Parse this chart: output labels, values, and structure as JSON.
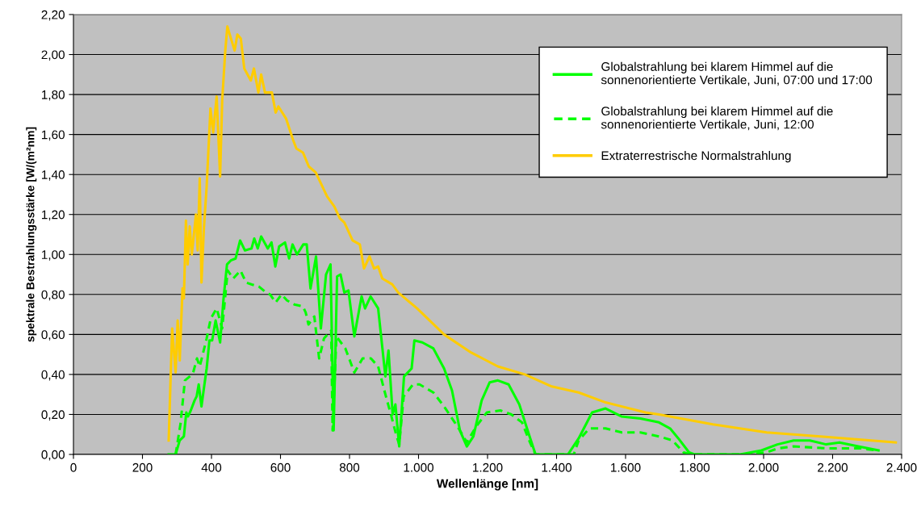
{
  "chart_data": {
    "type": "line",
    "xlabel": "Wellenlänge [nm]",
    "ylabel": "spektrale Bestrahlungsstärke [W/(m²nm]",
    "xlim": [
      0,
      2400
    ],
    "ylim": [
      0,
      2.2
    ],
    "xticks": [
      {
        "value": 0,
        "label": "0"
      },
      {
        "value": 200,
        "label": "200"
      },
      {
        "value": 400,
        "label": "400"
      },
      {
        "value": 600,
        "label": "600"
      },
      {
        "value": 800,
        "label": "800"
      },
      {
        "value": 1000,
        "label": "1.000"
      },
      {
        "value": 1200,
        "label": "1.200"
      },
      {
        "value": 1400,
        "label": "1.400"
      },
      {
        "value": 1600,
        "label": "1.600"
      },
      {
        "value": 1800,
        "label": "1.800"
      },
      {
        "value": 2000,
        "label": "2.000"
      },
      {
        "value": 2200,
        "label": "2.200"
      },
      {
        "value": 2400,
        "label": "2.400"
      }
    ],
    "yticks": [
      {
        "value": 0,
        "label": "0,00"
      },
      {
        "value": 0.2,
        "label": "0,20"
      },
      {
        "value": 0.4,
        "label": "0,40"
      },
      {
        "value": 0.6,
        "label": "0,60"
      },
      {
        "value": 0.8,
        "label": "0,80"
      },
      {
        "value": 1.0,
        "label": "1,00"
      },
      {
        "value": 1.2,
        "label": "1,20"
      },
      {
        "value": 1.4,
        "label": "1,40"
      },
      {
        "value": 1.6,
        "label": "1,60"
      },
      {
        "value": 1.8,
        "label": "1,80"
      },
      {
        "value": 2.0,
        "label": "2,00"
      },
      {
        "value": 2.2,
        "label": "2,20"
      }
    ],
    "grid": "y",
    "legend": "top right",
    "marker": "none",
    "series": [
      {
        "name": "Globalstrahlung bei klarem Himmel auf die sonnenorientierte Vertikale, Juni, 07:00 und 17:00",
        "color": "#00ff00",
        "line_style": "solid",
        "x": [
          276,
          296,
          308,
          320,
          327,
          332,
          340,
          351,
          357,
          363,
          371,
          378,
          386,
          394,
          402,
          412,
          425,
          435,
          445,
          456,
          470,
          483,
          497,
          516,
          524,
          534,
          544,
          563,
          574,
          585,
          596,
          613,
          625,
          635,
          648,
          666,
          676,
          687,
          703,
          717,
          732,
          745,
          754,
          764,
          774,
          785,
          797,
          814,
          835,
          845,
          861,
          883,
          904,
          913,
          925,
          933,
          944,
          958,
          980,
          988,
          1011,
          1043,
          1074,
          1097,
          1120,
          1140,
          1159,
          1183,
          1206,
          1230,
          1261,
          1292,
          1320,
          1339,
          1394,
          1433,
          1464,
          1503,
          1542,
          1588,
          1643,
          1697,
          1729,
          1753,
          1784,
          1800,
          1932,
          1994,
          2040,
          2087,
          2134,
          2181,
          2220,
          2274,
          2333
        ],
        "values": [
          0,
          0,
          0.07,
          0.09,
          0.21,
          0.19,
          0.22,
          0.27,
          0.29,
          0.35,
          0.24,
          0.33,
          0.43,
          0.57,
          0.57,
          0.67,
          0.56,
          0.78,
          0.95,
          0.97,
          0.98,
          1.07,
          1.02,
          1.03,
          1.08,
          1.03,
          1.09,
          1.03,
          1.06,
          0.94,
          1.04,
          1.06,
          0.98,
          1.05,
          1.0,
          1.05,
          1.05,
          0.83,
          0.99,
          0.63,
          0.9,
          0.95,
          0.12,
          0.89,
          0.9,
          0.81,
          0.82,
          0.59,
          0.79,
          0.73,
          0.79,
          0.73,
          0.39,
          0.52,
          0.2,
          0.25,
          0.04,
          0.39,
          0.43,
          0.57,
          0.56,
          0.53,
          0.43,
          0.32,
          0.12,
          0.04,
          0.09,
          0.27,
          0.36,
          0.37,
          0.35,
          0.25,
          0.1,
          0,
          0,
          0,
          0.08,
          0.21,
          0.23,
          0.19,
          0.18,
          0.16,
          0.13,
          0.08,
          0.01,
          0,
          0,
          0.02,
          0.05,
          0.07,
          0.07,
          0.05,
          0.06,
          0.04,
          0.02
        ]
      },
      {
        "name": "Globalstrahlung bei klarem Himmel auf die sonnenorientierte Vertikale, Juni, 12:00",
        "color": "#00ff00",
        "line_style": "dashed",
        "x": [
          296,
          310,
          323,
          337,
          347,
          358,
          366,
          386,
          398,
          415,
          431,
          447,
          463,
          484,
          500,
          517,
          537,
          558,
          570,
          586,
          603,
          619,
          640,
          665,
          673,
          681,
          698,
          712,
          726,
          747,
          751,
          762,
          788,
          814,
          838,
          862,
          883,
          904,
          920,
          935,
          944,
          957,
          984,
          1003,
          1043,
          1074,
          1105,
          1120,
          1140,
          1167,
          1198,
          1237,
          1269,
          1300,
          1323,
          1339,
          1450,
          1464,
          1495,
          1542,
          1589,
          1643,
          1697,
          1736,
          1768,
          1791,
          1950,
          2009,
          2040,
          2087,
          2189,
          2283,
          2329
        ],
        "values": [
          0,
          0.15,
          0.37,
          0.39,
          0.41,
          0.48,
          0.44,
          0.58,
          0.68,
          0.73,
          0.63,
          0.92,
          0.88,
          0.92,
          0.86,
          0.85,
          0.84,
          0.81,
          0.8,
          0.76,
          0.8,
          0.77,
          0.75,
          0.74,
          0.71,
          0.65,
          0.69,
          0.48,
          0.58,
          0.62,
          0.12,
          0.59,
          0.53,
          0.41,
          0.48,
          0.48,
          0.44,
          0.3,
          0.2,
          0.1,
          0.05,
          0.29,
          0.35,
          0.35,
          0.31,
          0.24,
          0.16,
          0.12,
          0.06,
          0.14,
          0.21,
          0.22,
          0.2,
          0.16,
          0.06,
          0,
          0,
          0.07,
          0.13,
          0.13,
          0.11,
          0.11,
          0.09,
          0.07,
          0.01,
          0,
          0,
          0.01,
          0.03,
          0.04,
          0.03,
          0.03,
          0.02
        ]
      },
      {
        "name": "Extraterrestrische Normalstrahlung",
        "color": "#ffcc00",
        "line_style": "solid",
        "x": [
          276,
          286,
          296,
          302,
          308,
          316,
          320,
          326,
          331,
          337,
          343,
          355,
          360,
          366,
          371,
          378,
          386,
          397,
          405,
          415,
          425,
          431,
          440,
          446,
          467,
          475,
          485,
          495,
          514,
          523,
          536,
          544,
          555,
          575,
          586,
          594,
          616,
          637,
          646,
          665,
          682,
          702,
          735,
          756,
          772,
          785,
          809,
          830,
          842,
          858,
          871,
          883,
          895,
          924,
          941,
          996,
          1074,
          1152,
          1230,
          1308,
          1386,
          1464,
          1542,
          1658,
          1697,
          1853,
          2009,
          2165,
          2383
        ],
        "values": [
          0.07,
          0.63,
          0.41,
          0.67,
          0.47,
          0.83,
          0.78,
          1.17,
          0.95,
          1.14,
          1.0,
          1.2,
          1.02,
          1.38,
          0.86,
          1.13,
          1.34,
          1.73,
          1.61,
          1.79,
          1.39,
          1.77,
          2.02,
          2.14,
          2.02,
          2.1,
          2.08,
          1.93,
          1.87,
          1.93,
          1.81,
          1.9,
          1.81,
          1.81,
          1.71,
          1.74,
          1.68,
          1.57,
          1.53,
          1.51,
          1.44,
          1.41,
          1.29,
          1.24,
          1.18,
          1.16,
          1.07,
          1.05,
          0.93,
          0.99,
          0.93,
          0.94,
          0.88,
          0.85,
          0.81,
          0.73,
          0.6,
          0.51,
          0.44,
          0.4,
          0.34,
          0.31,
          0.26,
          0.21,
          0.2,
          0.15,
          0.11,
          0.09,
          0.06
        ]
      }
    ]
  }
}
